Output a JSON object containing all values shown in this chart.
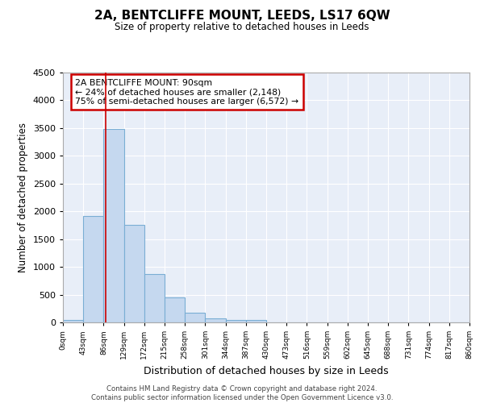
{
  "title": "2A, BENTCLIFFE MOUNT, LEEDS, LS17 6QW",
  "subtitle": "Size of property relative to detached houses in Leeds",
  "xlabel": "Distribution of detached houses by size in Leeds",
  "ylabel": "Number of detached properties",
  "bar_color": "#c5d8ef",
  "bar_edge_color": "#7aaed4",
  "background_color": "#e8eef8",
  "grid_color": "#ffffff",
  "bin_edges": [
    0,
    43,
    86,
    129,
    172,
    215,
    258,
    301,
    344,
    387,
    430,
    473,
    516,
    559,
    602,
    645,
    688,
    731,
    774,
    817,
    860
  ],
  "bar_heights": [
    50,
    1910,
    3480,
    1760,
    870,
    450,
    175,
    75,
    50,
    50,
    0,
    0,
    0,
    0,
    0,
    0,
    0,
    0,
    0,
    0
  ],
  "red_line_x": 90,
  "ylim": [
    0,
    4500
  ],
  "yticks": [
    0,
    500,
    1000,
    1500,
    2000,
    2500,
    3000,
    3500,
    4000,
    4500
  ],
  "annotation_title": "2A BENTCLIFFE MOUNT: 90sqm",
  "annotation_line1": "← 24% of detached houses are smaller (2,148)",
  "annotation_line2": "75% of semi-detached houses are larger (6,572) →",
  "annotation_box_color": "#ffffff",
  "annotation_box_edge_color": "#cc0000",
  "footer_line1": "Contains HM Land Registry data © Crown copyright and database right 2024.",
  "footer_line2": "Contains public sector information licensed under the Open Government Licence v3.0."
}
